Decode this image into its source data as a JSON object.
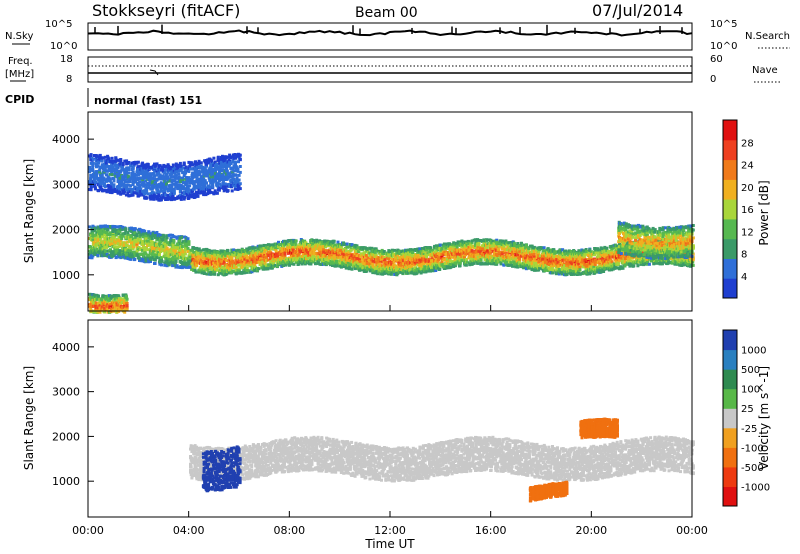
{
  "header": {
    "station": "Stokkseyri (fitACF)",
    "beam": "Beam 00",
    "date": "07/Jul/2014"
  },
  "noise_panel": {
    "left_label": "N.Sky",
    "left_ticks": [
      "10^5",
      "10^0"
    ],
    "right_ticks": [
      "10^5",
      "10^0"
    ],
    "right_label": "N.Search"
  },
  "freq_panel": {
    "left_label_top": "Freq.",
    "left_label_unit": "[MHz]",
    "left_ticks": [
      "18",
      "8"
    ],
    "right_ticks": [
      "60",
      "0"
    ],
    "right_label": "Nave"
  },
  "cpid_panel": {
    "label": "CPID",
    "value": "normal (fast) 151"
  },
  "colors": {
    "power": [
      "#1f3fd0",
      "#2f6fd8",
      "#3a9a68",
      "#56b850",
      "#a9d63a",
      "#f0b020",
      "#f07a1a",
      "#ee4020",
      "#e01010"
    ],
    "velocity": [
      "#2040b0",
      "#2a80c0",
      "#2e8a50",
      "#58b848",
      "#c8c8c8",
      "#f0a020",
      "#f07010",
      "#ee3a10",
      "#e01010"
    ]
  },
  "chart_data": [
    {
      "type": "heatmap",
      "title": "Power",
      "xlabel": "Time UT",
      "ylabel": "Slant Range [km]",
      "x_ticks": [
        "00:00",
        "04:00",
        "08:00",
        "12:00",
        "16:00",
        "20:00",
        "00:00"
      ],
      "y_ticks": [
        1000,
        2000,
        3000,
        4000
      ],
      "ylim": [
        200,
        4600
      ],
      "xlim_hours": [
        0,
        24
      ],
      "colorbar": {
        "label": "Power [dB]",
        "ticks": [
          4,
          8,
          12,
          16,
          20,
          24,
          28
        ],
        "range": [
          0,
          32
        ]
      },
      "bands": [
        {
          "t0": 4.0,
          "t1": 24.0,
          "r_min": 1150,
          "r_max": 1700,
          "peak_dB": 30
        },
        {
          "t0": 0.0,
          "t1": 4.0,
          "r_min": 1300,
          "r_max": 2000,
          "peak_dB": 22
        },
        {
          "t0": 0.0,
          "t1": 6.0,
          "r_min": 2800,
          "r_max": 3600,
          "peak_dB": 8
        },
        {
          "t0": 21.0,
          "t1": 24.0,
          "r_min": 1500,
          "r_max": 2200,
          "peak_dB": 26
        },
        {
          "t0": 0.0,
          "t1": 1.5,
          "r_min": 200,
          "r_max": 700,
          "peak_dB": 30
        }
      ]
    },
    {
      "type": "heatmap",
      "title": "Velocity",
      "xlabel": "Time UT",
      "ylabel": "Slant Range [km]",
      "x_ticks": [
        "00:00",
        "04:00",
        "08:00",
        "12:00",
        "16:00",
        "20:00",
        "00:00"
      ],
      "y_ticks": [
        1000,
        2000,
        3000,
        4000
      ],
      "ylim": [
        200,
        4600
      ],
      "xlim_hours": [
        0,
        24
      ],
      "colorbar": {
        "label": "Velocity [m s^-1]",
        "ticks": [
          "1000",
          "500",
          "100",
          "25",
          "-25",
          "-100",
          "-500",
          "-1000"
        ]
      },
      "bands": [
        {
          "t0": 4.0,
          "t1": 24.0,
          "r_min": 1150,
          "r_max": 1900,
          "velocity": 0
        },
        {
          "t0": 4.5,
          "t1": 6.0,
          "r_min": 900,
          "r_max": 1800,
          "velocity": 800
        },
        {
          "t0": 19.5,
          "t1": 21.0,
          "r_min": 1900,
          "r_max": 2300,
          "velocity": -150
        },
        {
          "t0": 17.5,
          "t1": 19.0,
          "r_min": 600,
          "r_max": 900,
          "velocity": -200
        }
      ]
    }
  ]
}
